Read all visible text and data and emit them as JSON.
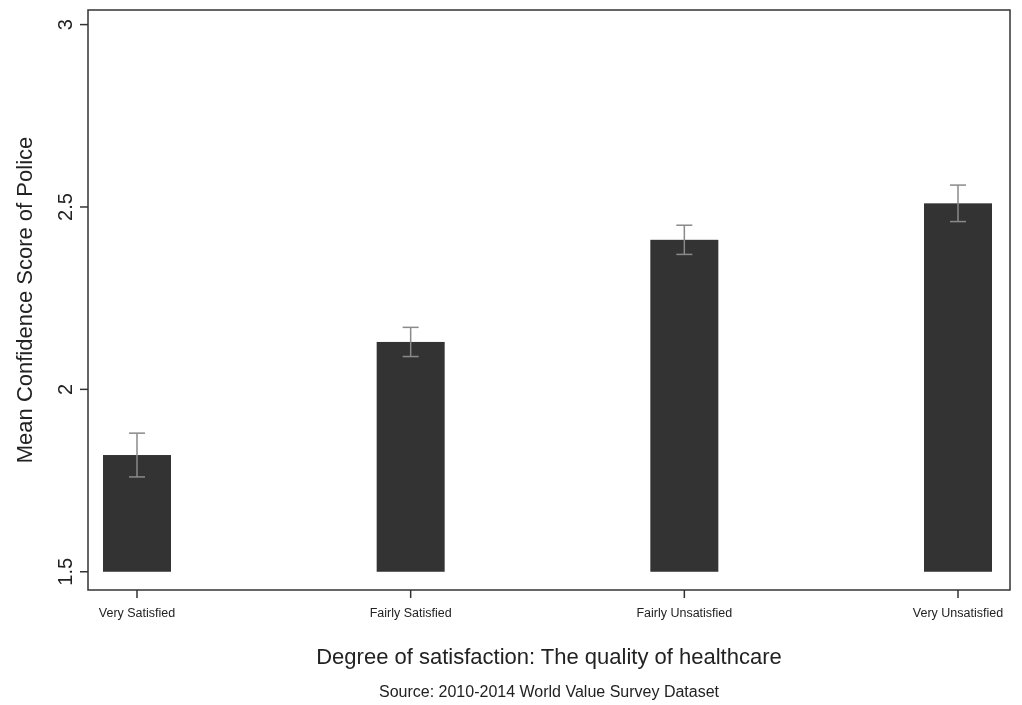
{
  "chart_data": {
    "type": "bar",
    "categories": [
      "Very Satisfied",
      "Fairly Satisfied",
      "Fairly Unsatisfied",
      "Very Unsatisfied"
    ],
    "base": [
      1.5,
      1.5,
      1.5,
      1.5
    ],
    "values": [
      0.32,
      0.63,
      0.91,
      1.01
    ],
    "errors": [
      0.06,
      0.04,
      0.04,
      0.05
    ],
    "color": "#333333",
    "ylim": [
      1.45,
      3.04
    ],
    "yticks": [
      1.5,
      2,
      2.5,
      3
    ],
    "xlabel": "Degree of satisfaction: The quality of healthcare",
    "ylabel": "Mean Confidence Score of Police",
    "annotations": [
      "Source: 2010-2014 World Value Survey Dataset"
    ],
    "grid": false
  }
}
